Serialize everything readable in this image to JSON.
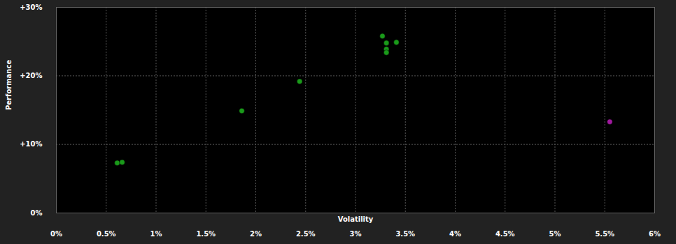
{
  "chart_data": {
    "type": "scatter",
    "x_label": "Volatility",
    "y_label": "Performance",
    "x": [
      0.61,
      0.66,
      1.86,
      2.44,
      3.27,
      3.31,
      3.41,
      3.31,
      3.31,
      5.55
    ],
    "values": [
      7.3,
      7.4,
      14.9,
      19.2,
      25.8,
      24.8,
      24.9,
      23.9,
      23.4,
      13.3
    ],
    "colors": [
      "#1a9a1a",
      "#1a9a1a",
      "#1a9a1a",
      "#1a9a1a",
      "#1a9a1a",
      "#1a9a1a",
      "#1a9a1a",
      "#1a9a1a",
      "#1a9a1a",
      "#a0199f"
    ],
    "marker": "circle",
    "xlim": [
      0,
      6
    ],
    "ylim": [
      0,
      30
    ],
    "xticks": [
      {
        "value": 0,
        "label": "0%"
      },
      {
        "value": 0.5,
        "label": "0.5%"
      },
      {
        "value": 1,
        "label": "1%"
      },
      {
        "value": 1.5,
        "label": "1.5%"
      },
      {
        "value": 2,
        "label": "2%"
      },
      {
        "value": 2.5,
        "label": "2.5%"
      },
      {
        "value": 3,
        "label": "3%"
      },
      {
        "value": 3.5,
        "label": "3.5%"
      },
      {
        "value": 4,
        "label": "4%"
      },
      {
        "value": 4.5,
        "label": "4.5%"
      },
      {
        "value": 5,
        "label": "5%"
      },
      {
        "value": 5.5,
        "label": "5.5%"
      },
      {
        "value": 6,
        "label": "6%"
      }
    ],
    "yticks": [
      {
        "value": 0,
        "label": "0%"
      },
      {
        "value": 10,
        "label": "+10%"
      },
      {
        "value": 20,
        "label": "+20%"
      },
      {
        "value": 30,
        "label": "+30%"
      }
    ],
    "grid": true
  }
}
